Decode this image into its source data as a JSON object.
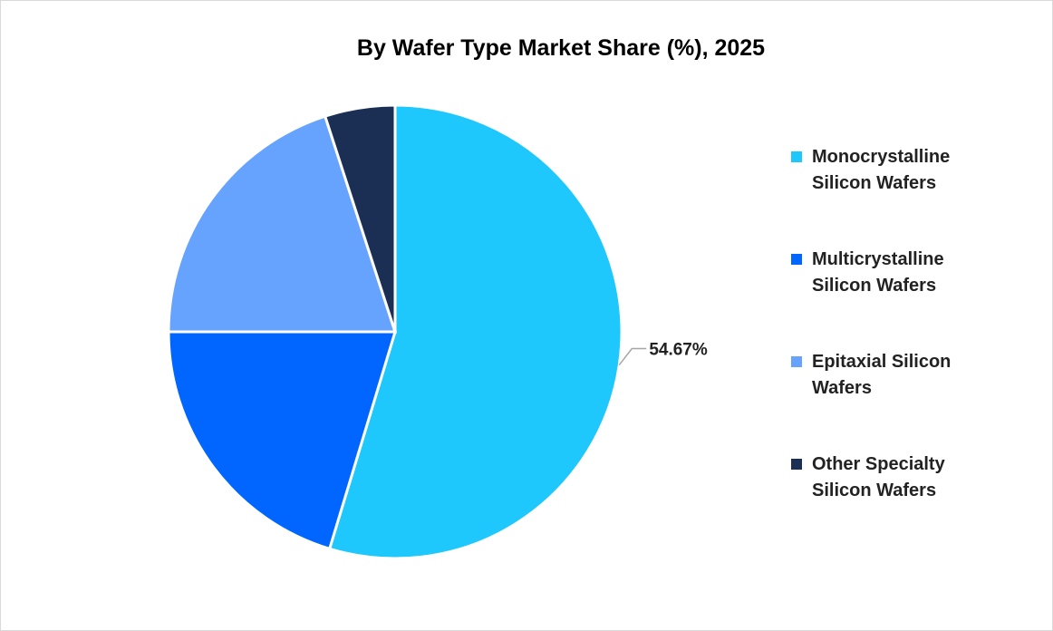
{
  "chart_data": {
    "type": "pie",
    "title": "By Wafer Type Market Share (%), 2025",
    "categories": [
      "Monocrystalline Silicon Wafers",
      "Multicrystalline Silicon Wafers",
      "Epitaxial Silicon Wafers",
      "Other Specialty Silicon Wafers"
    ],
    "values": [
      54.67,
      20.33,
      20.0,
      5.0
    ],
    "colors": [
      "#1ec8fc",
      "#0066ff",
      "#66a3ff",
      "#1b2f55"
    ],
    "data_labels": [
      "54.67%",
      "",
      "",
      ""
    ],
    "legend_position": "right"
  }
}
